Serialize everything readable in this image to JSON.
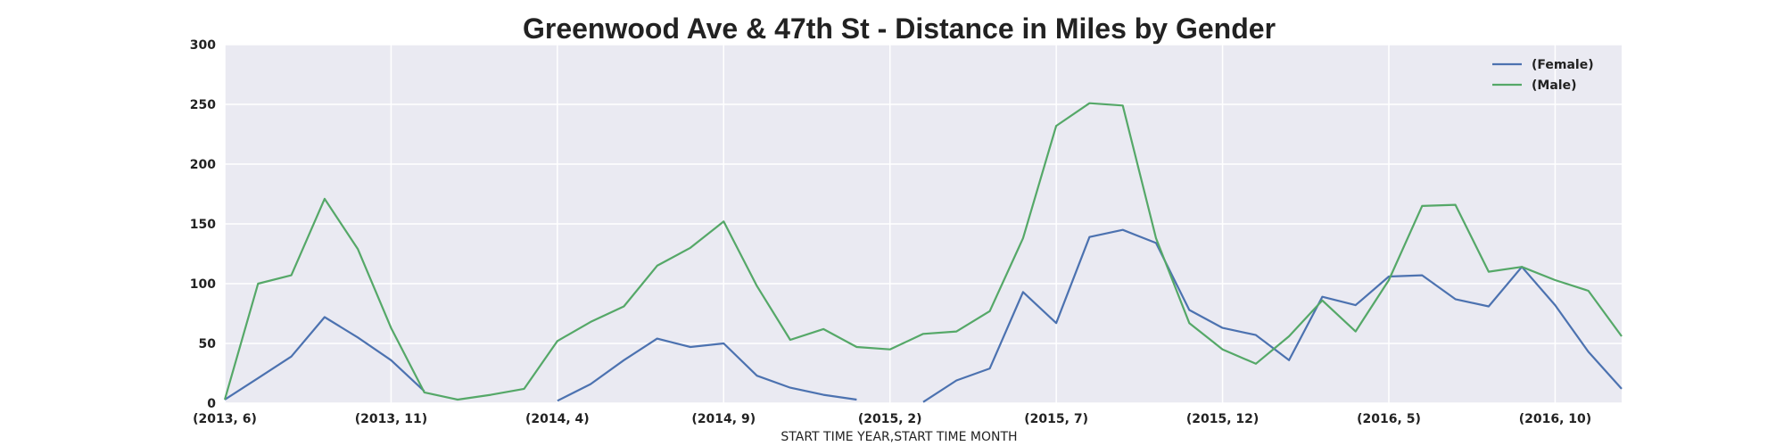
{
  "chart_data": {
    "type": "line",
    "title": "Greenwood Ave & 47th St - Distance in Miles by Gender",
    "xlabel": "START TIME YEAR,START TIME MONTH",
    "ylabel": "",
    "ylim": [
      0,
      300
    ],
    "yticks": [
      "0",
      "50",
      "100",
      "150",
      "200",
      "250",
      "300"
    ],
    "x": [
      "(2013, 6)",
      "(2013, 7)",
      "(2013, 8)",
      "(2013, 9)",
      "(2013, 10)",
      "(2013, 11)",
      "(2013, 12)",
      "(2014, 1)",
      "(2014, 2)",
      "(2014, 3)",
      "(2014, 4)",
      "(2014, 5)",
      "(2014, 6)",
      "(2014, 7)",
      "(2014, 8)",
      "(2014, 9)",
      "(2014, 10)",
      "(2014, 11)",
      "(2014, 12)",
      "(2015, 1)",
      "(2015, 2)",
      "(2015, 3)",
      "(2015, 4)",
      "(2015, 5)",
      "(2015, 6)",
      "(2015, 7)",
      "(2015, 8)",
      "(2015, 9)",
      "(2015, 10)",
      "(2015, 11)",
      "(2015, 12)",
      "(2016, 1)",
      "(2016, 2)",
      "(2016, 3)",
      "(2016, 4)",
      "(2016, 5)",
      "(2016, 6)",
      "(2016, 7)",
      "(2016, 8)",
      "(2016, 9)",
      "(2016, 10)",
      "(2016, 11)",
      "(2016, 12)"
    ],
    "xticks": [
      "(2013, 6)",
      "(2013, 11)",
      "(2014, 4)",
      "(2014, 9)",
      "(2015, 2)",
      "(2015, 7)",
      "(2015, 12)",
      "(2016, 5)",
      "(2016, 10)"
    ],
    "xtick_indices": [
      0,
      5,
      10,
      15,
      20,
      25,
      30,
      35,
      40
    ],
    "series": [
      {
        "name": "(Female)",
        "color": "#4c72b0",
        "values": [
          3,
          21,
          39,
          72,
          55,
          36,
          10,
          null,
          null,
          null,
          2,
          16,
          36,
          54,
          47,
          50,
          23,
          13,
          7,
          3,
          null,
          1,
          19,
          29,
          93,
          67,
          139,
          145,
          134,
          78,
          63,
          57,
          36,
          89,
          82,
          106,
          107,
          87,
          81,
          114,
          82,
          43,
          12
        ]
      },
      {
        "name": "(Male)",
        "color": "#55a868",
        "values": [
          3,
          100,
          107,
          171,
          129,
          63,
          9,
          3,
          7,
          12,
          52,
          68,
          81,
          115,
          130,
          152,
          98,
          53,
          62,
          47,
          45,
          58,
          60,
          77,
          138,
          232,
          251,
          249,
          138,
          67,
          45,
          33,
          56,
          86,
          60,
          103,
          165,
          166,
          110,
          114,
          103,
          94,
          56
        ]
      }
    ],
    "grid": true,
    "legend_position": "top-right"
  }
}
